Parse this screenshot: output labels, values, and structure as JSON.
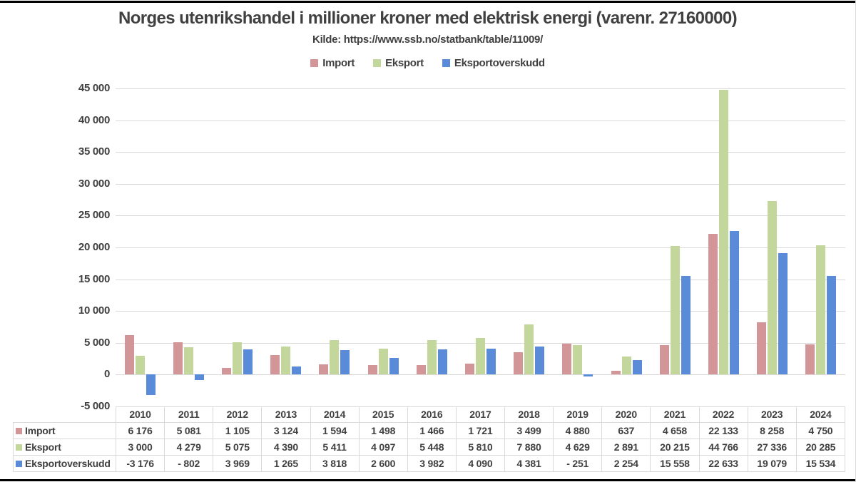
{
  "title": "Norges utenrikshandel i millioner kroner med elektrisk energi (varenr. 27160000)",
  "subtitle": "Kilde: https://www.ssb.no/statbank/table/11009/",
  "colors": {
    "import": "#D29699",
    "eksport": "#C3D69B",
    "eksportoverskudd": "#5A8BD9",
    "gridline": "#D9D9D9",
    "table_border": "#D9D9D9",
    "text": "#404040"
  },
  "chart_data": {
    "type": "bar",
    "title": "Norges utenrikshandel i millioner kroner med elektrisk energi (varenr. 27160000)",
    "subtitle": "Kilde: https://www.ssb.no/statbank/table/11009/",
    "categories": [
      "2010",
      "2011",
      "2012",
      "2013",
      "2014",
      "2015",
      "2016",
      "2017",
      "2018",
      "2019",
      "2020",
      "2021",
      "2022",
      "2023",
      "2024"
    ],
    "series": [
      {
        "name": "Import",
        "color": "#D29699",
        "values": [
          6176,
          5081,
          1105,
          3124,
          1594,
          1498,
          1466,
          1721,
          3499,
          4880,
          637,
          4658,
          22133,
          8258,
          4750
        ],
        "display": [
          "6 176",
          "5 081",
          "1 105",
          "3 124",
          "1 594",
          "1 498",
          "1 466",
          "1 721",
          "3 499",
          "4 880",
          "637",
          "4 658",
          "22 133",
          "8 258",
          "4 750"
        ]
      },
      {
        "name": "Eksport",
        "color": "#C3D69B",
        "values": [
          3000,
          4279,
          5075,
          4390,
          5411,
          4097,
          5448,
          5810,
          7880,
          4629,
          2891,
          20215,
          44766,
          27336,
          20285
        ],
        "display": [
          "3 000",
          "4 279",
          "5 075",
          "4 390",
          "5 411",
          "4 097",
          "5 448",
          "5 810",
          "7 880",
          "4 629",
          "2 891",
          "20 215",
          "44 766",
          "27 336",
          "20 285"
        ]
      },
      {
        "name": "Eksportoverskudd",
        "color": "#5A8BD9",
        "values": [
          -3176,
          -802,
          3969,
          1265,
          3818,
          2600,
          3982,
          4090,
          4381,
          -251,
          2254,
          15558,
          22633,
          19079,
          15534
        ],
        "display": [
          "-3 176",
          "- 802",
          "3 969",
          "1 265",
          "3 818",
          "2 600",
          "3 982",
          "4 090",
          "4 381",
          "- 251",
          "2 254",
          "15 558",
          "22 633",
          "19 079",
          "15 534"
        ]
      }
    ],
    "ylim": [
      -5000,
      45000
    ],
    "ytick_step": 5000,
    "ytick_values": [
      45000,
      40000,
      35000,
      30000,
      25000,
      20000,
      15000,
      10000,
      5000,
      0,
      -5000
    ],
    "ytick_labels": [
      "45 000",
      "40 000",
      "35 000",
      "30 000",
      "25 000",
      "20 000",
      "15 000",
      "10 000",
      "5 000",
      "0",
      "-5 000"
    ],
    "grid": true,
    "legend_position": "top"
  }
}
